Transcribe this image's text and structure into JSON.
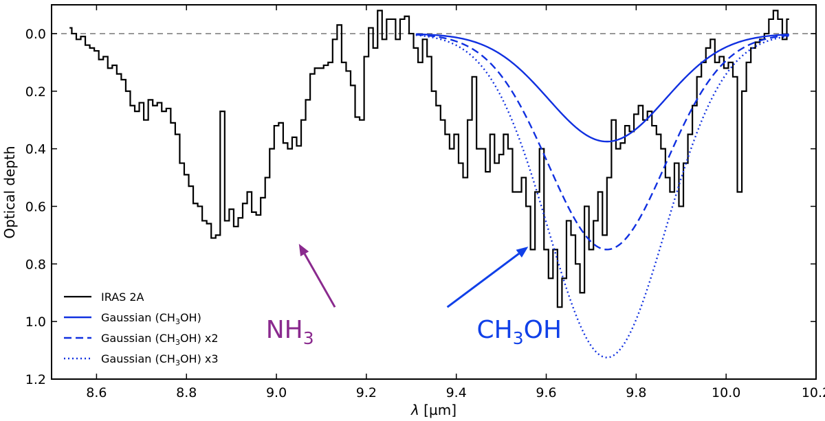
{
  "chart_data": {
    "type": "line",
    "xlabel_sym": "λ",
    "xlabel_unit": " [µm]",
    "ylabel": "Optical depth",
    "xlim": [
      8.5,
      10.2
    ],
    "ylim": [
      1.2,
      -0.1
    ],
    "y_inverted": true,
    "xticks": [
      8.6,
      8.8,
      9.0,
      9.2,
      9.4,
      9.6,
      9.8,
      10.0,
      10.2
    ],
    "xtick_labels": [
      "8.6",
      "8.8",
      "9.0",
      "9.2",
      "9.4",
      "9.6",
      "9.8",
      "10.0",
      "10.2"
    ],
    "yticks": [
      0.0,
      0.2,
      0.4,
      0.6,
      0.8,
      1.0,
      1.2
    ],
    "ytick_labels": [
      "0.0",
      "0.2",
      "0.4",
      "0.6",
      "0.8",
      "1.0",
      "1.2"
    ],
    "baseline": 0.0,
    "legend_position": "lower-left",
    "series": [
      {
        "name": "IRAS 2A",
        "label": "IRAS 2A",
        "style": "steps",
        "color": "#000000",
        "x": [
          8.54,
          8.55,
          8.56,
          8.57,
          8.58,
          8.59,
          8.6,
          8.61,
          8.62,
          8.63,
          8.64,
          8.65,
          8.66,
          8.67,
          8.68,
          8.69,
          8.7,
          8.71,
          8.72,
          8.73,
          8.74,
          8.75,
          8.76,
          8.77,
          8.78,
          8.79,
          8.8,
          8.81,
          8.82,
          8.83,
          8.84,
          8.85,
          8.86,
          8.87,
          8.88,
          8.89,
          8.9,
          8.91,
          8.92,
          8.93,
          8.94,
          8.95,
          8.96,
          8.97,
          8.98,
          8.99,
          9.0,
          9.01,
          9.02,
          9.03,
          9.04,
          9.05,
          9.06,
          9.07,
          9.08,
          9.09,
          9.1,
          9.11,
          9.12,
          9.13,
          9.14,
          9.15,
          9.16,
          9.17,
          9.18,
          9.19,
          9.2,
          9.21,
          9.22,
          9.23,
          9.24,
          9.25,
          9.26,
          9.27,
          9.28,
          9.29,
          9.3,
          9.31,
          9.32,
          9.33,
          9.34,
          9.35,
          9.36,
          9.37,
          9.38,
          9.39,
          9.4,
          9.41,
          9.42,
          9.43,
          9.44,
          9.45,
          9.46,
          9.47,
          9.48,
          9.49,
          9.5,
          9.51,
          9.52,
          9.53,
          9.54,
          9.55,
          9.56,
          9.57,
          9.58,
          9.59,
          9.6,
          9.61,
          9.62,
          9.63,
          9.64,
          9.65,
          9.66,
          9.67,
          9.68,
          9.69,
          9.7,
          9.71,
          9.72,
          9.73,
          9.74,
          9.75,
          9.76,
          9.77,
          9.78,
          9.79,
          9.8,
          9.81,
          9.82,
          9.83,
          9.84,
          9.85,
          9.86,
          9.87,
          9.88,
          9.89,
          9.9,
          9.91,
          9.92,
          9.93,
          9.94,
          9.95,
          9.96,
          9.97,
          9.98,
          9.99,
          10.0,
          10.01,
          10.02,
          10.03,
          10.04,
          10.05,
          10.06,
          10.07,
          10.08,
          10.09,
          10.1,
          10.11,
          10.12,
          10.13,
          10.14
        ],
        "y": [
          -0.02,
          0.0,
          0.02,
          0.01,
          0.04,
          0.05,
          0.06,
          0.09,
          0.08,
          0.12,
          0.11,
          0.14,
          0.16,
          0.2,
          0.25,
          0.27,
          0.24,
          0.3,
          0.23,
          0.25,
          0.24,
          0.27,
          0.26,
          0.31,
          0.35,
          0.45,
          0.49,
          0.53,
          0.59,
          0.6,
          0.65,
          0.66,
          0.71,
          0.7,
          0.27,
          0.65,
          0.61,
          0.67,
          0.64,
          0.59,
          0.55,
          0.62,
          0.63,
          0.57,
          0.5,
          0.4,
          0.32,
          0.31,
          0.38,
          0.4,
          0.36,
          0.39,
          0.3,
          0.23,
          0.14,
          0.12,
          0.12,
          0.11,
          0.1,
          0.02,
          -0.03,
          0.1,
          0.13,
          0.18,
          0.29,
          0.3,
          0.08,
          -0.02,
          0.05,
          -0.08,
          0.02,
          -0.05,
          -0.05,
          0.02,
          -0.05,
          -0.06,
          0.0,
          0.05,
          0.1,
          0.02,
          0.08,
          0.2,
          0.25,
          0.3,
          0.35,
          0.4,
          0.35,
          0.45,
          0.5,
          0.3,
          0.15,
          0.4,
          0.4,
          0.48,
          0.35,
          0.45,
          0.42,
          0.35,
          0.4,
          0.55,
          0.55,
          0.5,
          0.6,
          0.75,
          0.55,
          0.4,
          0.75,
          0.85,
          0.75,
          0.95,
          0.85,
          0.65,
          0.7,
          0.8,
          0.9,
          0.6,
          0.75,
          0.65,
          0.55,
          0.7,
          0.5,
          0.3,
          0.4,
          0.38,
          0.32,
          0.34,
          0.28,
          0.25,
          0.3,
          0.27,
          0.32,
          0.35,
          0.4,
          0.5,
          0.55,
          0.45,
          0.6,
          0.45,
          0.35,
          0.25,
          0.15,
          0.1,
          0.05,
          0.02,
          0.1,
          0.08,
          0.12,
          0.1,
          0.15,
          0.55,
          0.2,
          0.1,
          0.05,
          0.03,
          0.02,
          0.0,
          -0.05,
          -0.08,
          -0.05,
          0.02,
          -0.05
        ]
      },
      {
        "name": "Gaussian (CH3OH)",
        "label_prefix": "Gaussian (CH",
        "label_sub": "3",
        "label_suffix": "OH)",
        "style": "solid",
        "color": "#1030e0",
        "model": "gaussian",
        "center": 9.735,
        "sigma": 0.13,
        "amplitude": 0.375,
        "x_range": [
          9.31,
          10.14
        ]
      },
      {
        "name": "Gaussian (CH3OH) x2",
        "label_prefix": "Gaussian (CH",
        "label_sub": "3",
        "label_suffix": "OH) x2",
        "style": "dashed",
        "color": "#1030e0",
        "model": "gaussian",
        "center": 9.735,
        "sigma": 0.13,
        "amplitude": 0.75,
        "x_range": [
          9.31,
          10.14
        ]
      },
      {
        "name": "Gaussian (CH3OH) x3",
        "label_prefix": "Gaussian (CH",
        "label_sub": "3",
        "label_suffix": "OH) x3",
        "style": "dotted",
        "color": "#1030e0",
        "model": "gaussian",
        "center": 9.735,
        "sigma": 0.13,
        "amplitude": 1.125,
        "x_range": [
          9.31,
          10.14
        ]
      }
    ],
    "annotations": [
      {
        "name": "nh3",
        "text_main": "NH",
        "text_sub": "3",
        "color": "#8a2a8e",
        "text_at": [
          9.03,
          1.0
        ],
        "arrow_from": [
          9.13,
          0.95
        ],
        "arrow_to": [
          9.05,
          0.73
        ]
      },
      {
        "name": "ch3oh",
        "text_main": "CH",
        "text_sub": "3",
        "text_tail": "OH",
        "color": "#1040e8",
        "text_at": [
          9.54,
          1.0
        ],
        "arrow_from": [
          9.38,
          0.95
        ],
        "arrow_to": [
          9.56,
          0.74
        ]
      }
    ]
  }
}
